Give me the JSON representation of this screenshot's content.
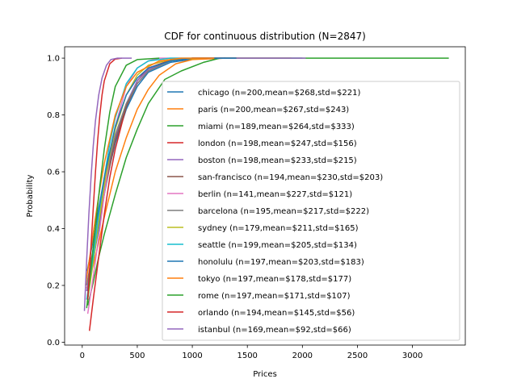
{
  "chart_data": {
    "type": "line",
    "title": "CDF for continuous distribution (N=2847)",
    "xlabel": "Prices",
    "ylabel": "Probability",
    "xlim": [
      -160,
      3480
    ],
    "ylim": [
      -0.01,
      1.04
    ],
    "xticks": [
      0,
      500,
      1000,
      1500,
      2000,
      2500,
      3000
    ],
    "yticks": [
      0.0,
      0.2,
      0.4,
      0.6,
      0.8,
      1.0
    ],
    "xtick_labels": [
      "0",
      "500",
      "1000",
      "1500",
      "2000",
      "2500",
      "3000"
    ],
    "ytick_labels": [
      "0.0",
      "0.2",
      "0.4",
      "0.6",
      "0.8",
      "1.0"
    ],
    "legend_position": "center-right",
    "series": [
      {
        "name": "chicago (n=200,mean=$268,std=$221)",
        "color": "#1f77b4",
        "x": [
          55,
          100,
          150,
          200,
          250,
          300,
          400,
          500,
          600,
          800,
          1000,
          1300,
          2000
        ],
        "y": [
          0.2,
          0.29,
          0.4,
          0.52,
          0.62,
          0.7,
          0.82,
          0.9,
          0.95,
          0.985,
          0.996,
          1.0,
          1.0
        ]
      },
      {
        "name": "paris (n=200,mean=$267,std=$243)",
        "color": "#ff7f0e",
        "x": [
          40,
          100,
          150,
          200,
          300,
          400,
          500,
          600,
          700,
          850,
          1000,
          1300,
          1900
        ],
        "y": [
          0.19,
          0.27,
          0.35,
          0.44,
          0.6,
          0.72,
          0.82,
          0.89,
          0.94,
          0.98,
          0.995,
          1.0,
          1.0
        ]
      },
      {
        "name": "miami (n=189,mean=$264,std=$333)",
        "color": "#2ca02c",
        "x": [
          50,
          100,
          150,
          200,
          300,
          400,
          500,
          600,
          750,
          900,
          1100,
          1250,
          2000,
          3330
        ],
        "y": [
          0.13,
          0.21,
          0.3,
          0.38,
          0.52,
          0.65,
          0.75,
          0.84,
          0.925,
          0.955,
          0.985,
          1.0,
          1.0,
          1.0
        ]
      },
      {
        "name": "london (n=198,mean=$247,std=$156)",
        "color": "#d62728",
        "x": [
          65,
          100,
          150,
          200,
          250,
          300,
          400,
          500,
          600,
          800,
          1000,
          1300
        ],
        "y": [
          0.04,
          0.15,
          0.3,
          0.45,
          0.58,
          0.68,
          0.83,
          0.92,
          0.965,
          0.993,
          1.0,
          1.0
        ]
      },
      {
        "name": "boston (n=198,mean=$233,std=$215)",
        "color": "#9467bd",
        "x": [
          40,
          80,
          120,
          160,
          200,
          300,
          400,
          500,
          600,
          800,
          1000,
          2030
        ],
        "y": [
          0.18,
          0.27,
          0.36,
          0.45,
          0.54,
          0.72,
          0.84,
          0.92,
          0.96,
          0.99,
          1.0,
          1.0
        ]
      },
      {
        "name": "san-francisco (n=194,mean=$230,std=$203)",
        "color": "#8c564b",
        "x": [
          50,
          100,
          150,
          200,
          300,
          400,
          500,
          600,
          800,
          1000,
          1400
        ],
        "y": [
          0.18,
          0.3,
          0.42,
          0.53,
          0.71,
          0.83,
          0.91,
          0.955,
          0.99,
          1.0,
          1.0
        ]
      },
      {
        "name": "berlin (n=141,mean=$227,std=$121)",
        "color": "#e377c2",
        "x": [
          50,
          100,
          150,
          200,
          250,
          300,
          400,
          500,
          600,
          700,
          900
        ],
        "y": [
          0.1,
          0.23,
          0.37,
          0.52,
          0.65,
          0.76,
          0.9,
          0.965,
          0.99,
          1.0,
          1.0
        ]
      },
      {
        "name": "barcelona (n=195,mean=$217,std=$222)",
        "color": "#7f7f7f",
        "x": [
          40,
          100,
          150,
          200,
          300,
          400,
          500,
          600,
          800,
          1000,
          1300
        ],
        "y": [
          0.2,
          0.33,
          0.45,
          0.56,
          0.73,
          0.84,
          0.91,
          0.955,
          0.99,
          1.0,
          1.0
        ]
      },
      {
        "name": "sydney (n=179,mean=$211,std=$165)",
        "color": "#bcbd22",
        "x": [
          45,
          100,
          150,
          200,
          250,
          300,
          400,
          500,
          600,
          800,
          1100
        ],
        "y": [
          0.14,
          0.28,
          0.42,
          0.55,
          0.66,
          0.75,
          0.87,
          0.94,
          0.975,
          0.995,
          1.0
        ]
      },
      {
        "name": "seattle (n=199,mean=$205,std=$134)",
        "color": "#17becf",
        "x": [
          40,
          100,
          150,
          200,
          250,
          300,
          400,
          500,
          600,
          800,
          1000
        ],
        "y": [
          0.15,
          0.3,
          0.45,
          0.58,
          0.7,
          0.79,
          0.91,
          0.965,
          0.99,
          1.0,
          1.0
        ]
      },
      {
        "name": "honolulu (n=197,mean=$203,std=$183)",
        "color": "#1f77b4",
        "x": [
          45,
          100,
          150,
          200,
          300,
          400,
          500,
          600,
          800,
          1000,
          1400
        ],
        "y": [
          0.25,
          0.36,
          0.47,
          0.58,
          0.76,
          0.87,
          0.93,
          0.965,
          0.99,
          1.0,
          1.0
        ]
      },
      {
        "name": "tokyo (n=197,mean=$178,std=$177)",
        "color": "#ff7f0e",
        "x": [
          30,
          80,
          120,
          160,
          200,
          300,
          400,
          500,
          700,
          900,
          1200
        ],
        "y": [
          0.2,
          0.33,
          0.44,
          0.54,
          0.63,
          0.8,
          0.9,
          0.95,
          0.99,
          1.0,
          1.0
        ]
      },
      {
        "name": "rome (n=197,mean=$171,std=$107)",
        "color": "#2ca02c",
        "x": [
          40,
          80,
          120,
          160,
          200,
          250,
          300,
          400,
          500,
          700
        ],
        "y": [
          0.12,
          0.26,
          0.41,
          0.55,
          0.68,
          0.81,
          0.9,
          0.975,
          0.995,
          1.0
        ]
      },
      {
        "name": "orlando (n=194,mean=$145,std=$56)",
        "color": "#d62728",
        "x": [
          50,
          80,
          100,
          120,
          140,
          160,
          180,
          200,
          250,
          300,
          360
        ],
        "y": [
          0.15,
          0.34,
          0.47,
          0.6,
          0.71,
          0.8,
          0.87,
          0.92,
          0.98,
          0.997,
          1.0
        ]
      },
      {
        "name": "istanbul (n=169,mean=$92,std=$66)",
        "color": "#9467bd",
        "x": [
          20,
          40,
          60,
          80,
          100,
          120,
          150,
          180,
          220,
          260,
          320,
          450
        ],
        "y": [
          0.11,
          0.29,
          0.45,
          0.58,
          0.69,
          0.78,
          0.87,
          0.93,
          0.975,
          0.995,
          1.0,
          1.0
        ]
      }
    ]
  }
}
